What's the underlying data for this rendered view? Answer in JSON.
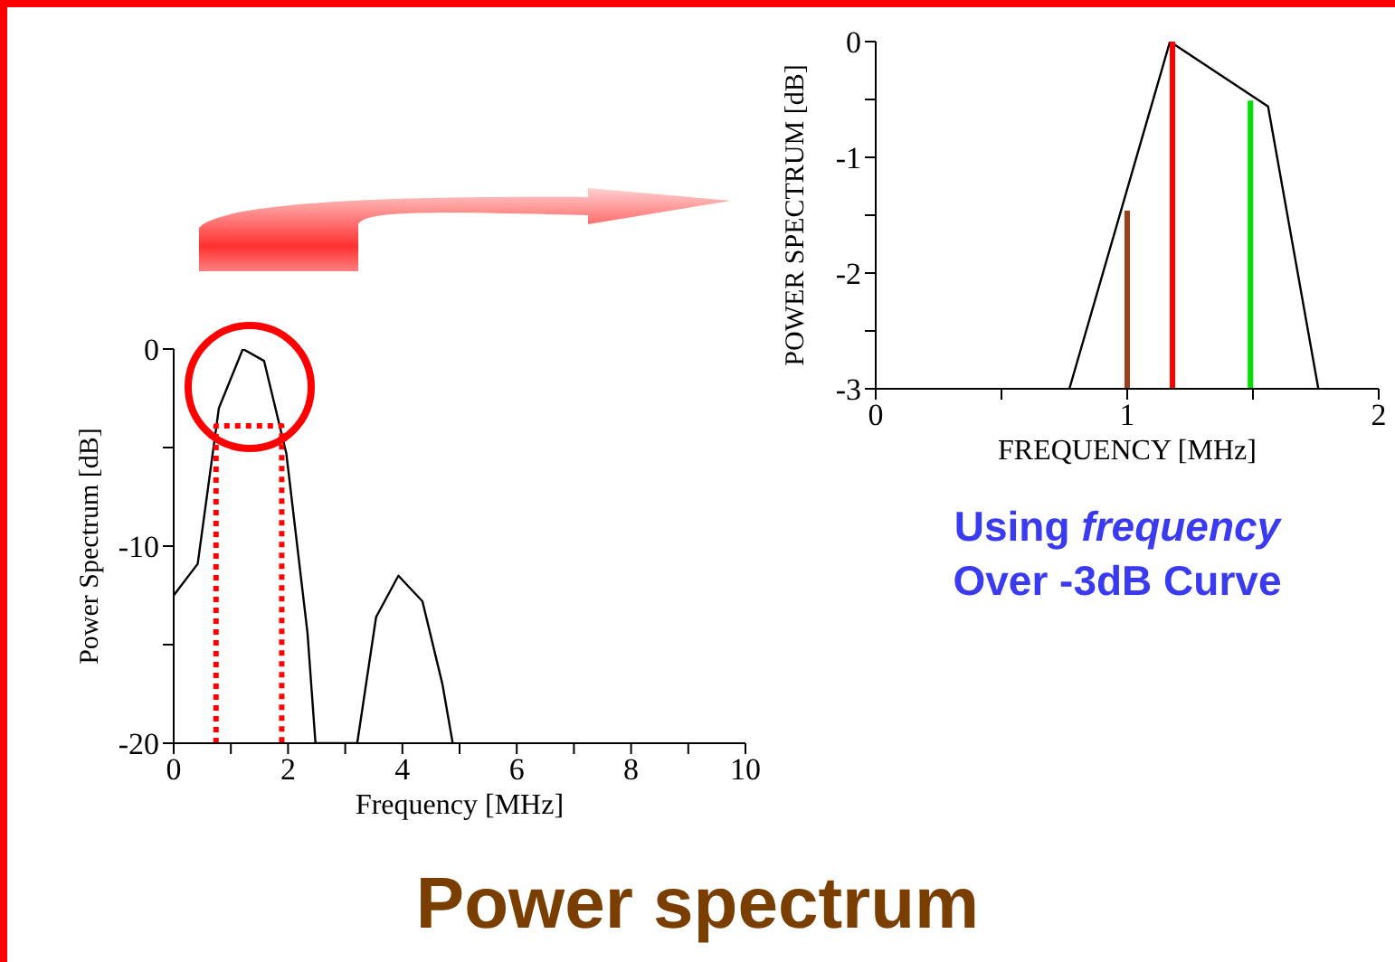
{
  "chart_data": [
    {
      "type": "line",
      "title": "Power spectrum",
      "xlabel": "Frequency [MHz]",
      "ylabel": "Power Spectrum [dB]",
      "xlim": [
        0,
        10
      ],
      "xticks": [
        0,
        {
          "value": 1,
          "label": null
        },
        2,
        {
          "value": 3,
          "label": null
        },
        4,
        {
          "value": 5,
          "label": null
        },
        6,
        {
          "value": 7,
          "label": null
        },
        8,
        {
          "value": 9,
          "label": null
        },
        10
      ],
      "ylim": [
        -20,
        0
      ],
      "yticks": [
        -20,
        {
          "value": -15,
          "label": null
        },
        -10,
        {
          "value": -5,
          "label": null
        },
        0
      ],
      "marker": "none",
      "series": [
        {
          "color": "#000000",
          "line_style": "solid",
          "x": [
            0,
            0.42,
            0.79,
            1.21,
            1.58,
            1.97,
            2.34,
            2.48,
            3.21,
            3.54,
            3.93,
            4.35,
            4.7,
            4.88
          ],
          "values": [
            -12.5,
            -10.9,
            -3,
            0,
            -0.6,
            -5.3,
            -14.4,
            -20,
            -20,
            -13.6,
            -11.5,
            -12.8,
            -17,
            -20
          ]
        },
        {
          "color": "#ff0000",
          "line_style": "dotted",
          "x": [
            0.74,
            0.74,
            1.89,
            1.89
          ],
          "values": [
            -20,
            -3.9,
            -3.9,
            -20
          ]
        }
      ]
    },
    {
      "type": "line",
      "xlabel": "FREQUENCY [MHz]",
      "ylabel": "POWER SPECTRUM [dB]",
      "annotations": [
        "Using frequency",
        "Over -3dB Curve"
      ],
      "xlim": [
        0,
        2
      ],
      "xticks": [
        0,
        {
          "value": 0.5,
          "label": null
        },
        1,
        {
          "value": 1.5,
          "label": null
        },
        2
      ],
      "ylim": [
        -3,
        0
      ],
      "yticks": [
        -3,
        {
          "value": -2.5,
          "label": null
        },
        -2,
        {
          "value": -1.5,
          "label": null
        },
        -1,
        {
          "value": -0.5,
          "label": null
        },
        0
      ],
      "marker": "none",
      "series": [
        {
          "color": "#000000",
          "line_style": "solid",
          "x": [
            0.77,
            1.17,
            1.56,
            1.76
          ],
          "values": [
            -3,
            0,
            -0.56,
            -3
          ]
        },
        {
          "color": "#a0401a",
          "line_style": "solid",
          "x": [
            1,
            1
          ],
          "values": [
            -3,
            -1.46
          ]
        },
        {
          "color": "#ff0000",
          "line_style": "solid",
          "x": [
            1.18,
            1.18
          ],
          "values": [
            -3,
            0
          ]
        },
        {
          "color": "#00e000",
          "line_style": "solid",
          "x": [
            1.49,
            1.49
          ],
          "values": [
            -3,
            -0.51
          ]
        }
      ]
    }
  ]
}
